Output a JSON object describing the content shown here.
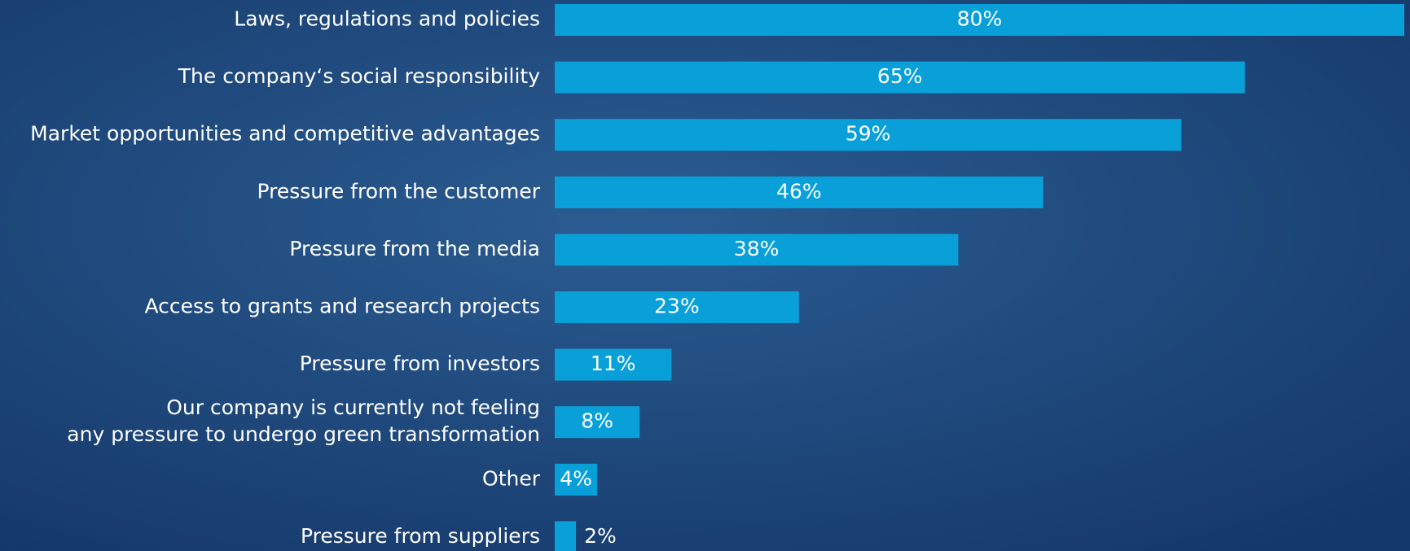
{
  "chart_data": {
    "type": "bar",
    "orientation": "horizontal",
    "categories": [
      "Laws, regulations and policies",
      "The company‘s social responsibility",
      "Market opportunities and competitive advantages",
      "Pressure from the customer",
      "Pressure from the media",
      "Access to grants and research projects",
      "Pressure from investors",
      "Our company is currently not feeling\nany pressure to undergo green transformation",
      "Other",
      "Pressure from suppliers"
    ],
    "values": [
      80,
      65,
      59,
      46,
      38,
      23,
      11,
      8,
      4,
      2
    ],
    "value_labels": [
      "80%",
      "65%",
      "59%",
      "46%",
      "38%",
      "23%",
      "11%",
      "8%",
      "4%",
      "2%"
    ],
    "color": "#09a0d9"
  }
}
